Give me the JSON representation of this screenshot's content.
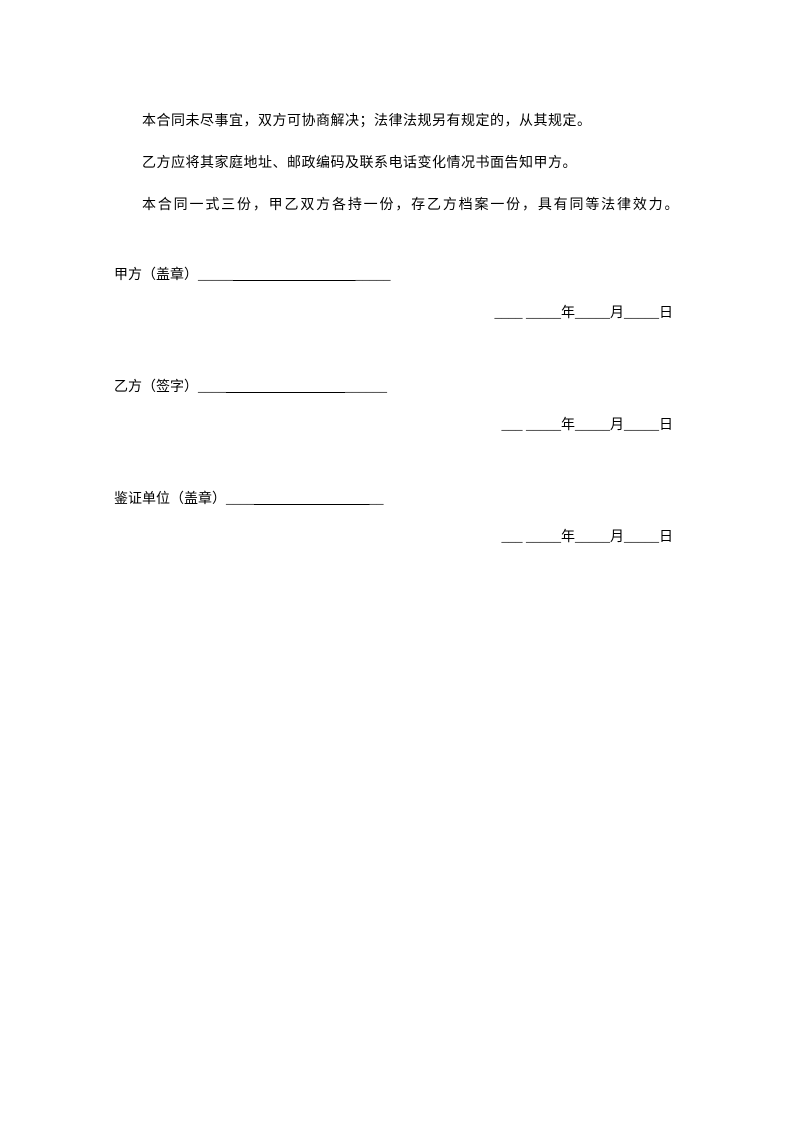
{
  "paragraphs": {
    "p1": "本合同未尽事宜，双方可协商解决；法律法规另有规定的，从其规定。",
    "p2": "乙方应将其家庭地址、邮政编码及联系电话变化情况书面告知甲方。",
    "p3": "本合同一式三份，甲乙双方各持一份，存乙方档案一份，具有同等法律效力。"
  },
  "signatures": {
    "party_a": {
      "label": "甲方（盖章）_____",
      "blank": "                                   ",
      "tail": "_____",
      "date": "____ _____年_____月_____日"
    },
    "party_b": {
      "label": "乙方（签字）____",
      "blank": "                                  ",
      "tail": "______",
      "date": "___ _____年_____月_____日"
    },
    "witness": {
      "label": "鉴证单位（盖章）____",
      "blank": "                                 ",
      "tail": "__",
      "date": "___ _____年_____月_____日"
    }
  }
}
